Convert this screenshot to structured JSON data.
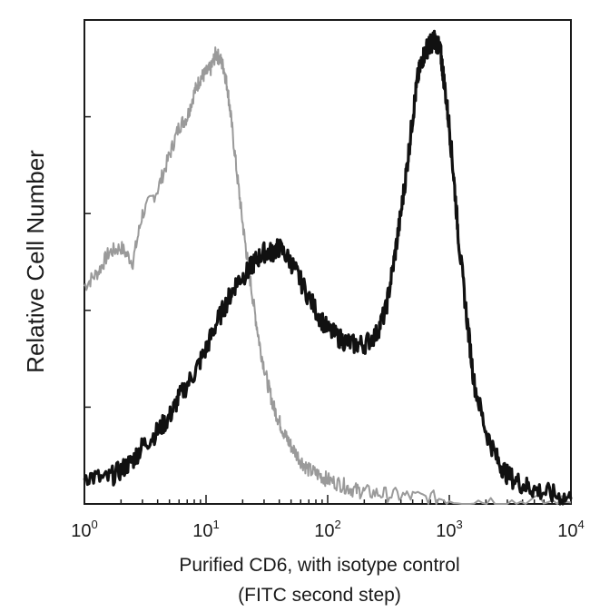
{
  "chart_data": {
    "type": "line",
    "xscale": "log",
    "xlim": [
      1,
      10000
    ],
    "ylim": [
      0,
      100
    ],
    "grid": false,
    "ylabel": "Relative Cell Number",
    "xlabel_line1": "Purified CD6, with isotype control",
    "xlabel_line2": "(FITC second step)",
    "x_ticks": [
      {
        "base": "10",
        "exp": "0",
        "value": 1
      },
      {
        "base": "10",
        "exp": "1",
        "value": 10
      },
      {
        "base": "10",
        "exp": "2",
        "value": 100
      },
      {
        "base": "10",
        "exp": "3",
        "value": 1000
      },
      {
        "base": "10",
        "exp": "4",
        "value": 10000
      }
    ],
    "series": [
      {
        "color": "#9a9a9a",
        "x": [
          1,
          1.3,
          1.6,
          2,
          2.5,
          3,
          4,
          5,
          6,
          7,
          8,
          9,
          10,
          11,
          12,
          13,
          14,
          15,
          16,
          18,
          20,
          22,
          25,
          28,
          32,
          36,
          40,
          45,
          50,
          60,
          70,
          85,
          100,
          130,
          160,
          200,
          300,
          500,
          1000,
          3000,
          10000
        ],
        "y": [
          45,
          48,
          52,
          53,
          50,
          60,
          65,
          72,
          78,
          80,
          85,
          88,
          89,
          90,
          93,
          92,
          90,
          86,
          80,
          68,
          58,
          50,
          40,
          32,
          25,
          20,
          17,
          14,
          12,
          9,
          7,
          6,
          5,
          4,
          3,
          2.5,
          2,
          1.5,
          1,
          0.5,
          0.3
        ]
      },
      {
        "color": "#111111",
        "x": [
          1,
          1.5,
          2,
          2.5,
          3,
          4,
          5,
          6,
          8,
          10,
          12,
          15,
          18,
          22,
          25,
          30,
          35,
          40,
          50,
          60,
          80,
          100,
          130,
          160,
          200,
          250,
          300,
          350,
          400,
          450,
          500,
          550,
          600,
          650,
          700,
          750,
          800,
          850,
          900,
          1000,
          1100,
          1200,
          1400,
          1600,
          2000,
          2500,
          3000,
          4000,
          5000,
          7000,
          10000
        ],
        "y": [
          6,
          5,
          7,
          9,
          12,
          15,
          18,
          22,
          27,
          32,
          37,
          42,
          46,
          48,
          50,
          52,
          52,
          53,
          50,
          46,
          40,
          36,
          34,
          33,
          33,
          35,
          40,
          50,
          60,
          70,
          80,
          88,
          92,
          94,
          95,
          96,
          95,
          93,
          88,
          78,
          66,
          54,
          38,
          25,
          15,
          9,
          6,
          4,
          3,
          2,
          1
        ]
      }
    ]
  }
}
